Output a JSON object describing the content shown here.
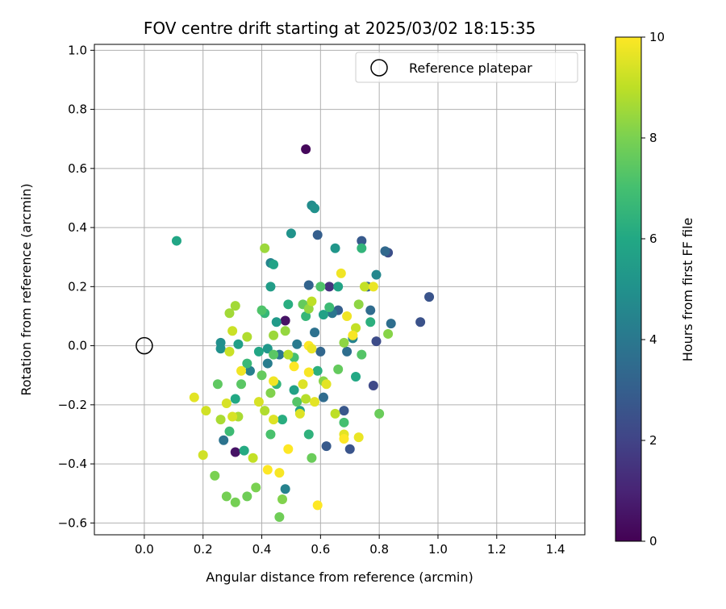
{
  "chart_data": {
    "type": "scatter",
    "title": "FOV centre drift starting at 2025/03/02 18:15:35",
    "xlabel": "Angular distance from reference (arcmin)",
    "ylabel": "Rotation from reference (arcmin)",
    "xlim": [
      -0.17,
      1.5
    ],
    "ylim": [
      -0.64,
      1.02
    ],
    "xticks": [
      "0.0",
      "0.2",
      "0.4",
      "0.6",
      "0.8",
      "1.0",
      "1.2",
      "1.4"
    ],
    "yticks": [
      "−0.6",
      "−0.4",
      "−0.2",
      "0.0",
      "0.2",
      "0.4",
      "0.6",
      "0.8",
      "1.0"
    ],
    "grid": true,
    "legend": {
      "position": "top-right",
      "label": "Reference platepar"
    },
    "reference_point": {
      "x": 0.0,
      "y": 0.0
    },
    "colorbar": {
      "label": "Hours from first FF file",
      "range": [
        0,
        10
      ],
      "ticks": [
        "0",
        "2",
        "4",
        "6",
        "8",
        "10"
      ],
      "colormap": "viridis"
    },
    "points": [
      [
        0.55,
        0.665,
        0.2
      ],
      [
        0.48,
        0.085,
        0.5
      ],
      [
        0.31,
        -0.36,
        0.5
      ],
      [
        0.63,
        0.2,
        1.5
      ],
      [
        0.78,
        -0.135,
        2.2
      ],
      [
        0.94,
        0.08,
        2.5
      ],
      [
        0.97,
        0.165,
        2.6
      ],
      [
        0.83,
        0.315,
        2.4
      ],
      [
        0.79,
        0.015,
        2.3
      ],
      [
        0.62,
        -0.34,
        2.8
      ],
      [
        0.59,
        0.375,
        3.0
      ],
      [
        0.74,
        0.355,
        2.8
      ],
      [
        0.7,
        -0.35,
        2.6
      ],
      [
        0.68,
        -0.22,
        2.7
      ],
      [
        0.66,
        0.12,
        3.0
      ],
      [
        0.56,
        0.205,
        3.2
      ],
      [
        0.6,
        -0.02,
        3.3
      ],
      [
        0.76,
        0.2,
        3.1
      ],
      [
        0.82,
        0.32,
        3.4
      ],
      [
        0.77,
        0.12,
        3.5
      ],
      [
        0.69,
        -0.02,
        3.6
      ],
      [
        0.58,
        0.045,
        3.7
      ],
      [
        0.61,
        -0.175,
        3.5
      ],
      [
        0.27,
        -0.32,
        3.8
      ],
      [
        0.64,
        0.11,
        3.9
      ],
      [
        0.84,
        0.075,
        3.6
      ],
      [
        0.46,
        -0.03,
        4.0
      ],
      [
        0.52,
        0.005,
        4.1
      ],
      [
        0.42,
        -0.06,
        4.2
      ],
      [
        0.36,
        -0.085,
        4.3
      ],
      [
        0.48,
        -0.485,
        4.4
      ],
      [
        0.71,
        0.025,
        4.4
      ],
      [
        0.79,
        0.24,
        4.6
      ],
      [
        0.43,
        0.28,
        4.5
      ],
      [
        0.57,
        0.475,
        4.8
      ],
      [
        0.58,
        0.465,
        5.0
      ],
      [
        0.26,
        0.01,
        4.9
      ],
      [
        0.26,
        -0.01,
        5.0
      ],
      [
        0.5,
        0.38,
        5.1
      ],
      [
        0.65,
        0.33,
        5.2
      ],
      [
        0.42,
        -0.01,
        5.3
      ],
      [
        0.45,
        0.08,
        5.4
      ],
      [
        0.43,
        0.2,
        5.5
      ],
      [
        0.32,
        0.005,
        5.6
      ],
      [
        0.51,
        -0.15,
        5.7
      ],
      [
        0.53,
        -0.22,
        5.6
      ],
      [
        0.61,
        0.105,
        5.7
      ],
      [
        0.44,
        0.275,
        5.8
      ],
      [
        0.11,
        0.355,
        5.9
      ],
      [
        0.39,
        -0.02,
        5.9
      ],
      [
        0.66,
        0.2,
        5.8
      ],
      [
        0.72,
        -0.105,
        6.0
      ],
      [
        0.31,
        -0.18,
        6.0
      ],
      [
        0.34,
        -0.355,
        6.1
      ],
      [
        0.49,
        0.14,
        6.2
      ],
      [
        0.47,
        -0.25,
        6.2
      ],
      [
        0.59,
        -0.085,
        6.3
      ],
      [
        0.77,
        0.08,
        6.3
      ],
      [
        0.74,
        0.33,
        6.5
      ],
      [
        0.56,
        -0.3,
        6.4
      ],
      [
        0.45,
        -0.13,
        6.5
      ],
      [
        0.55,
        0.1,
        6.6
      ],
      [
        0.41,
        0.11,
        6.6
      ],
      [
        0.35,
        -0.06,
        6.7
      ],
      [
        0.29,
        -0.29,
        6.8
      ],
      [
        0.63,
        0.13,
        6.8
      ],
      [
        0.68,
        -0.26,
        7.0
      ],
      [
        0.51,
        -0.04,
        7.0
      ],
      [
        0.43,
        -0.3,
        7.1
      ],
      [
        0.4,
        0.12,
        7.2
      ],
      [
        0.6,
        0.2,
        7.2
      ],
      [
        0.74,
        -0.03,
        7.3
      ],
      [
        0.52,
        -0.19,
        7.3
      ],
      [
        0.44,
        -0.03,
        7.4
      ],
      [
        0.33,
        -0.13,
        7.4
      ],
      [
        0.25,
        -0.13,
        7.5
      ],
      [
        0.54,
        0.14,
        7.6
      ],
      [
        0.66,
        -0.08,
        7.6
      ],
      [
        0.8,
        -0.23,
        7.7
      ],
      [
        0.57,
        -0.38,
        7.7
      ],
      [
        0.46,
        -0.58,
        7.8
      ],
      [
        0.35,
        -0.51,
        7.8
      ],
      [
        0.28,
        -0.51,
        7.9
      ],
      [
        0.31,
        -0.53,
        7.9
      ],
      [
        0.24,
        -0.44,
        8.0
      ],
      [
        0.38,
        -0.48,
        8.0
      ],
      [
        0.47,
        -0.52,
        8.1
      ],
      [
        0.43,
        -0.16,
        8.1
      ],
      [
        0.61,
        -0.12,
        8.2
      ],
      [
        0.83,
        0.04,
        8.2
      ],
      [
        0.73,
        0.14,
        8.3
      ],
      [
        0.68,
        0.01,
        8.3
      ],
      [
        0.56,
        0.125,
        8.4
      ],
      [
        0.48,
        0.05,
        8.4
      ],
      [
        0.41,
        0.33,
        8.5
      ],
      [
        0.44,
        0.035,
        8.5
      ],
      [
        0.29,
        0.11,
        8.6
      ],
      [
        0.31,
        0.135,
        8.6
      ],
      [
        0.32,
        -0.24,
        8.7
      ],
      [
        0.26,
        -0.25,
        8.7
      ],
      [
        0.35,
        0.03,
        8.8
      ],
      [
        0.41,
        -0.22,
        8.8
      ],
      [
        0.49,
        -0.03,
        8.9
      ],
      [
        0.55,
        -0.18,
        8.9
      ],
      [
        0.57,
        0.15,
        9.0
      ],
      [
        0.65,
        -0.23,
        9.0
      ],
      [
        0.75,
        0.2,
        9.1
      ],
      [
        0.72,
        0.06,
        9.1
      ],
      [
        0.3,
        0.05,
        9.2
      ],
      [
        0.29,
        -0.02,
        9.2
      ],
      [
        0.2,
        -0.37,
        9.3
      ],
      [
        0.21,
        -0.22,
        9.3
      ],
      [
        0.3,
        -0.24,
        9.4
      ],
      [
        0.39,
        -0.19,
        9.4
      ],
      [
        0.44,
        -0.25,
        9.5
      ],
      [
        0.53,
        -0.23,
        9.5
      ],
      [
        0.58,
        -0.19,
        9.6
      ],
      [
        0.68,
        -0.3,
        9.6
      ],
      [
        0.73,
        -0.31,
        9.7
      ],
      [
        0.78,
        0.2,
        9.7
      ],
      [
        0.69,
        0.1,
        9.8
      ],
      [
        0.67,
        0.245,
        9.8
      ],
      [
        0.71,
        0.035,
        9.9
      ],
      [
        0.56,
        -0.09,
        9.9
      ],
      [
        0.51,
        -0.07,
        10.0
      ],
      [
        0.46,
        -0.43,
        9.9
      ],
      [
        0.42,
        -0.42,
        10.0
      ],
      [
        0.49,
        -0.35,
        10.0
      ],
      [
        0.59,
        -0.54,
        10.0
      ],
      [
        0.68,
        -0.315,
        10.0
      ],
      [
        0.17,
        -0.175,
        9.6
      ],
      [
        0.28,
        -0.195,
        9.4
      ],
      [
        0.33,
        -0.085,
        9.8
      ],
      [
        0.56,
        0.0,
        10.0
      ],
      [
        0.57,
        -0.01,
        9.7
      ],
      [
        0.44,
        -0.12,
        9.8
      ],
      [
        0.54,
        -0.13,
        9.5
      ],
      [
        0.62,
        -0.13,
        9.6
      ],
      [
        0.4,
        -0.1,
        7.6
      ],
      [
        0.37,
        -0.38,
        9.1
      ]
    ]
  }
}
